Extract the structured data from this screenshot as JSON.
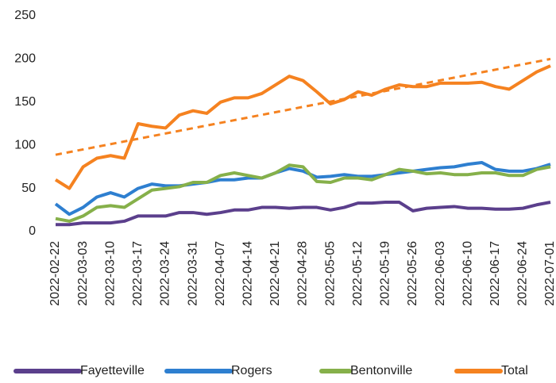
{
  "chart_data": {
    "type": "line",
    "categories": [
      "2022-02-22",
      null,
      "2022-03-03",
      null,
      "2022-03-10",
      null,
      "2022-03-17",
      null,
      "2022-03-24",
      null,
      "2022-03-31",
      null,
      "2022-04-07",
      null,
      "2022-04-14",
      null,
      "2022-04-21",
      null,
      "2022-04-28",
      null,
      "2022-05-05",
      null,
      "2022-05-12",
      null,
      "2022-05-19",
      null,
      "2022-05-26",
      null,
      "2022-06-03",
      null,
      "2022-06-10",
      null,
      "2022-06-17",
      null,
      "2022-06-24",
      null,
      "2022-07-01"
    ],
    "series": [
      {
        "name": "Fayetteville",
        "color": "#5b3f8c",
        "values": [
          8,
          8,
          10,
          10,
          10,
          12,
          18,
          18,
          18,
          22,
          22,
          20,
          22,
          25,
          25,
          28,
          28,
          27,
          28,
          28,
          25,
          28,
          33,
          33,
          34,
          34,
          24,
          27,
          28,
          29,
          27,
          27,
          26,
          26,
          27,
          31,
          34
        ]
      },
      {
        "name": "Rogers",
        "color": "#2e7fd0",
        "values": [
          32,
          20,
          28,
          40,
          45,
          40,
          50,
          55,
          53,
          53,
          55,
          57,
          60,
          60,
          62,
          62,
          68,
          73,
          70,
          63,
          64,
          66,
          64,
          64,
          66,
          68,
          70,
          72,
          74,
          75,
          78,
          80,
          72,
          70,
          70,
          73,
          78
        ]
      },
      {
        "name": "Bentonville",
        "color": "#86b04a",
        "values": [
          15,
          12,
          18,
          28,
          30,
          28,
          38,
          48,
          50,
          52,
          57,
          57,
          65,
          68,
          65,
          62,
          68,
          77,
          75,
          58,
          57,
          62,
          62,
          60,
          66,
          72,
          70,
          67,
          68,
          66,
          66,
          68,
          68,
          65,
          65,
          72,
          75
        ]
      },
      {
        "name": "Total",
        "color": "#f58220",
        "values": [
          60,
          50,
          75,
          85,
          88,
          85,
          125,
          122,
          120,
          135,
          140,
          137,
          150,
          155,
          155,
          160,
          170,
          180,
          175,
          162,
          148,
          153,
          162,
          158,
          165,
          170,
          168,
          168,
          172,
          172,
          172,
          173,
          168,
          165,
          175,
          185,
          192
        ]
      }
    ],
    "trendline": {
      "color": "#f58220",
      "values": [
        89,
        200
      ]
    },
    "ylim": [
      0,
      250
    ],
    "yticks": [
      0,
      50,
      100,
      150,
      200,
      250
    ],
    "grid": false,
    "legend": "bottom"
  }
}
